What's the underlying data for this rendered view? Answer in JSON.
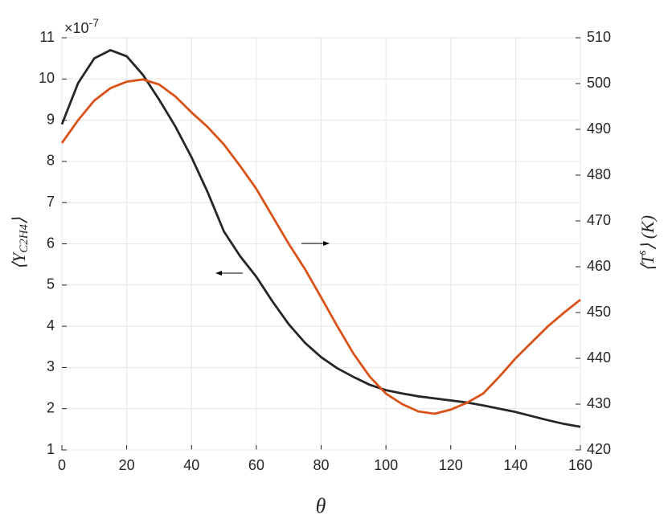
{
  "chart_data": {
    "type": "line",
    "x": [
      0,
      5,
      10,
      15,
      20,
      25,
      30,
      35,
      40,
      45,
      50,
      55,
      60,
      65,
      70,
      75,
      80,
      85,
      90,
      95,
      100,
      105,
      110,
      115,
      120,
      125,
      130,
      135,
      140,
      145,
      150,
      155,
      160
    ],
    "series": [
      {
        "name": "⟨Y C2H4⟩",
        "color": "#262626",
        "axis": "y",
        "values": [
          8.9,
          9.9,
          10.5,
          10.7,
          10.55,
          10.1,
          9.5,
          8.85,
          8.1,
          7.25,
          6.3,
          5.7,
          5.2,
          4.6,
          4.05,
          3.6,
          3.25,
          2.98,
          2.77,
          2.58,
          2.45,
          2.37,
          2.3,
          2.25,
          2.2,
          2.15,
          2.08,
          2.0,
          1.92,
          1.82,
          1.72,
          1.63,
          1.56
        ]
      },
      {
        "name": "⟨T s⟩ (K)",
        "color": "#d95319",
        "axis": "y2",
        "values": [
          487,
          492,
          496.3,
          499,
          500.4,
          500.9,
          499.8,
          497.2,
          493.7,
          490.5,
          486.7,
          482,
          477,
          471,
          465,
          459.5,
          453.3,
          447,
          441,
          436,
          432.3,
          430,
          428.4,
          427.9,
          428.8,
          430.3,
          432.3,
          436,
          440,
          443.5,
          447,
          450,
          452.8
        ]
      }
    ],
    "xlabel": "θ",
    "ylabel": {
      "open": "⟨Y",
      "sub": "C2H4",
      "close": "⟩"
    },
    "y2label": {
      "open": "⟨T",
      "sup": "s",
      "close": "⟩ (K)"
    },
    "y_scale": {
      "base": "×10",
      "exponent": "-7"
    },
    "xlim": [
      0,
      160
    ],
    "xticks": [
      0,
      20,
      40,
      60,
      80,
      100,
      120,
      140,
      160
    ],
    "ylim": [
      1,
      11
    ],
    "yticks": [
      1,
      2,
      3,
      4,
      5,
      6,
      7,
      8,
      9,
      10,
      11
    ],
    "y2lim": [
      420,
      510
    ],
    "y2ticks": [
      420,
      430,
      440,
      450,
      460,
      470,
      480,
      490,
      500,
      510
    ],
    "grid": true
  }
}
